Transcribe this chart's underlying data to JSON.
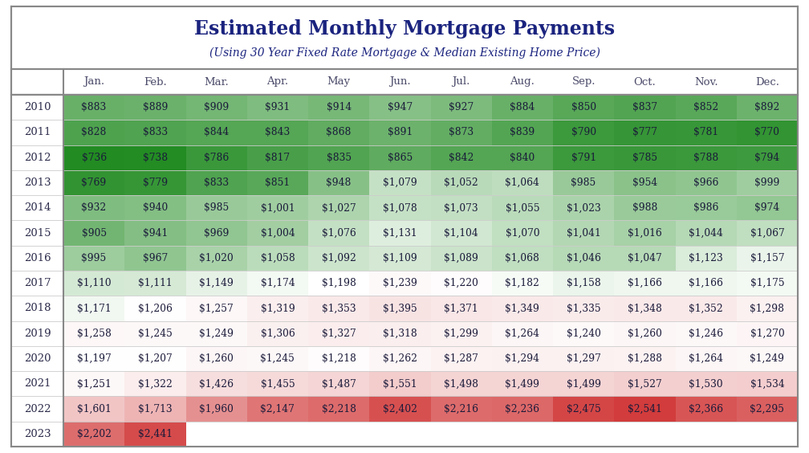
{
  "title": "Estimated Monthly Mortgage Payments",
  "subtitle": "(Using 30 Year Fixed Rate Mortgage & Median Existing Home Price)",
  "months": [
    "Jan.",
    "Feb.",
    "Mar.",
    "Apr.",
    "May",
    "Jun.",
    "Jul.",
    "Aug.",
    "Sep.",
    "Oct.",
    "Nov.",
    "Dec."
  ],
  "years": [
    "2010",
    "2011",
    "2012",
    "2013",
    "2014",
    "2015",
    "2016",
    "2017",
    "2018",
    "2019",
    "2020",
    "2021",
    "2022",
    "2023"
  ],
  "data": [
    [
      883,
      889,
      909,
      931,
      914,
      947,
      927,
      884,
      850,
      837,
      852,
      892
    ],
    [
      828,
      833,
      844,
      843,
      868,
      891,
      873,
      839,
      790,
      777,
      781,
      770
    ],
    [
      736,
      738,
      786,
      817,
      835,
      865,
      842,
      840,
      791,
      785,
      788,
      794
    ],
    [
      769,
      779,
      833,
      851,
      948,
      1079,
      1052,
      1064,
      985,
      954,
      966,
      999
    ],
    [
      932,
      940,
      985,
      1001,
      1027,
      1078,
      1073,
      1055,
      1023,
      988,
      986,
      974
    ],
    [
      905,
      941,
      969,
      1004,
      1076,
      1131,
      1104,
      1070,
      1041,
      1016,
      1044,
      1067
    ],
    [
      995,
      967,
      1020,
      1058,
      1092,
      1109,
      1089,
      1068,
      1046,
      1047,
      1123,
      1157
    ],
    [
      1110,
      1111,
      1149,
      1174,
      1198,
      1239,
      1220,
      1182,
      1158,
      1166,
      1166,
      1175
    ],
    [
      1171,
      1206,
      1257,
      1319,
      1353,
      1395,
      1371,
      1349,
      1335,
      1348,
      1352,
      1298
    ],
    [
      1258,
      1245,
      1249,
      1306,
      1327,
      1318,
      1299,
      1264,
      1240,
      1260,
      1246,
      1270
    ],
    [
      1197,
      1207,
      1260,
      1245,
      1218,
      1262,
      1287,
      1294,
      1297,
      1288,
      1264,
      1249
    ],
    [
      1251,
      1322,
      1426,
      1455,
      1487,
      1551,
      1498,
      1499,
      1499,
      1527,
      1530,
      1534
    ],
    [
      1601,
      1713,
      1960,
      2147,
      2218,
      2402,
      2216,
      2236,
      2475,
      2541,
      2366,
      2295
    ],
    [
      2202,
      2441,
      null,
      null,
      null,
      null,
      null,
      null,
      null,
      null,
      null,
      null
    ]
  ],
  "title_color": "#1a237e",
  "subtitle_color": "#1a237e",
  "header_text_color": "#4a4a6a",
  "year_text_color": "#2a2a4a",
  "border_color": "#888888",
  "cell_text_color": "#1a1a3a",
  "min_val": 736,
  "max_val": 2541,
  "green_dark": [
    34,
    139,
    34
  ],
  "green_light": [
    204,
    236,
    204
  ],
  "red_dark": [
    210,
    60,
    60
  ],
  "red_light": [
    255,
    200,
    200
  ],
  "white": [
    255,
    255,
    255
  ]
}
